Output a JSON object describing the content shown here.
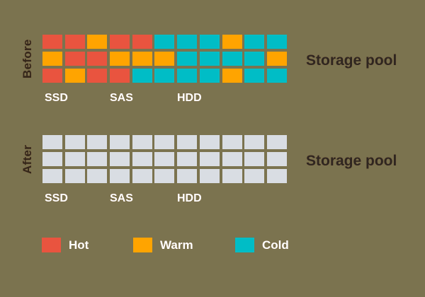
{
  "colors": {
    "background": "#7B734F",
    "hot": "#E9543F",
    "warm": "#FFA400",
    "cold": "#00BDC6",
    "empty": "#D9DDE3",
    "dark_text": "#2F2620",
    "light_text": "#FFFFFF"
  },
  "tiers": [
    "SSD",
    "SAS",
    "HDD"
  ],
  "before": {
    "label": "Before",
    "pool_title": "Storage pool",
    "rows": [
      [
        "hot",
        "hot",
        "warm",
        "hot",
        "hot",
        "cold",
        "cold",
        "cold",
        "warm",
        "cold",
        "cold"
      ],
      [
        "warm",
        "hot",
        "hot",
        "warm",
        "warm",
        "warm",
        "cold",
        "cold",
        "cold",
        "cold",
        "warm"
      ],
      [
        "hot",
        "warm",
        "hot",
        "hot",
        "cold",
        "cold",
        "cold",
        "cold",
        "warm",
        "cold",
        "cold"
      ]
    ]
  },
  "after": {
    "label": "After",
    "pool_title": "Storage pool",
    "rows": [
      [
        "empty",
        "empty",
        "empty",
        "empty",
        "empty",
        "empty",
        "empty",
        "empty",
        "empty",
        "empty",
        "empty"
      ],
      [
        "empty",
        "empty",
        "empty",
        "empty",
        "empty",
        "empty",
        "empty",
        "empty",
        "empty",
        "empty",
        "empty"
      ],
      [
        "empty",
        "empty",
        "empty",
        "empty",
        "empty",
        "empty",
        "empty",
        "empty",
        "empty",
        "empty",
        "empty"
      ]
    ]
  },
  "legend": [
    {
      "label": "Hot",
      "color_key": "hot"
    },
    {
      "label": "Warm",
      "color_key": "warm"
    },
    {
      "label": "Cold",
      "color_key": "cold"
    }
  ]
}
